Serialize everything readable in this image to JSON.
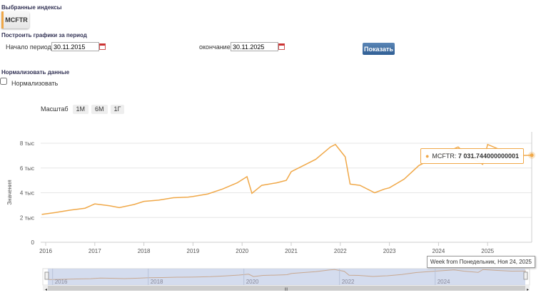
{
  "selected": {
    "title": "Выбранные индексы",
    "tags": [
      "MCFTR"
    ]
  },
  "period": {
    "title": "Построить графики за период",
    "start_label": "Начало периода",
    "start_value": "30.11.2015",
    "end_label": "окончание",
    "end_value": "30.11.2025",
    "show_button": "Показать"
  },
  "normalize": {
    "title": "Нормализовать данные",
    "checkbox_label": "Нормализовать",
    "checked": false
  },
  "zoom": {
    "label": "Масштаб",
    "buttons": [
      "1М",
      "6М",
      "1Г"
    ]
  },
  "tooltip": {
    "series": "MCFTR",
    "value": "7 031.744000000001",
    "date": "Week from Понедельник, Ноя 24, 2025"
  },
  "chart_data": {
    "type": "line",
    "ylabel": "Значения",
    "y_ticks": [
      "0",
      "2 тыс",
      "4 тыс",
      "6 тыс",
      "8 тыс"
    ],
    "ylim": [
      0,
      8000
    ],
    "x_ticks": [
      "2016",
      "2017",
      "2018",
      "2019",
      "2020",
      "2021",
      "2022",
      "2023",
      "2024",
      "2025"
    ],
    "navigator_ticks": [
      "2016",
      "2018",
      "2020",
      "2022",
      "2024"
    ],
    "series": [
      {
        "name": "MCFTR",
        "color": "#f0a848",
        "x": [
          2015.92,
          2016.2,
          2016.5,
          2016.8,
          2017.0,
          2017.3,
          2017.5,
          2017.8,
          2018.0,
          2018.3,
          2018.6,
          2018.9,
          2019.0,
          2019.3,
          2019.6,
          2019.9,
          2020.1,
          2020.2,
          2020.4,
          2020.7,
          2020.9,
          2021.0,
          2021.3,
          2021.5,
          2021.8,
          2021.9,
          2022.1,
          2022.2,
          2022.4,
          2022.7,
          2022.9,
          2023.0,
          2023.3,
          2023.6,
          2023.9,
          2024.0,
          2024.4,
          2024.6,
          2024.9,
          2025.0,
          2025.3,
          2025.6,
          2025.9
        ],
        "y": [
          2250,
          2400,
          2600,
          2750,
          3100,
          2950,
          2800,
          3050,
          3300,
          3400,
          3600,
          3650,
          3700,
          3900,
          4300,
          4800,
          5300,
          3950,
          4600,
          4800,
          5000,
          5700,
          6300,
          6700,
          7700,
          7900,
          6900,
          4700,
          4600,
          4000,
          4300,
          4400,
          5100,
          6200,
          6800,
          7000,
          7700,
          7000,
          6300,
          7900,
          7400,
          7000,
          7030
        ]
      }
    ]
  }
}
